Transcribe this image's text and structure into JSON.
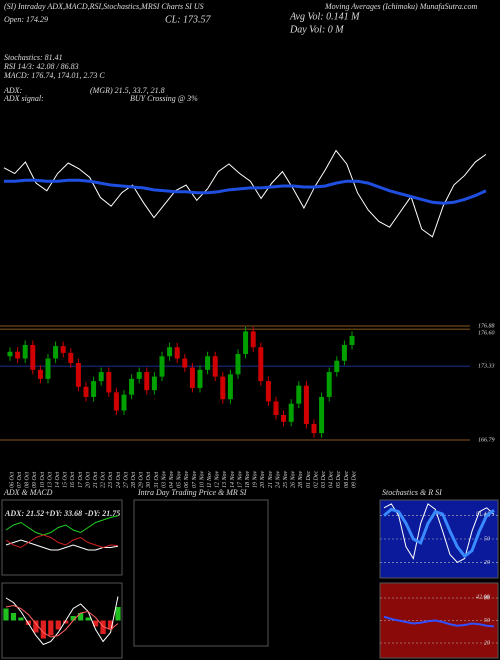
{
  "header": {
    "title": "(SI) Intraday ADX,MACD,RSI,Stochastics,MRSI Charts SI US",
    "site": "Moving Averages (Ichimoku) MunafaSutra.com",
    "open": "Open: 174.29",
    "close": "CL: 173.57",
    "avg_vol": "Avg Vol: 0.141 M",
    "day_vol": "Day Vol: 0 M",
    "stochastics": "Stochastics: 81.41",
    "rsi": "RSI 14/3: 42.08 / 86.83",
    "macd": "MACD: 176.74, 174.01, 2.73 C",
    "adx_label": "ADX:",
    "adx_value": "(MGR) 21.5, 33.7, 21.8",
    "adx_signal_label": "ADX  signal:",
    "adx_signal": "BUY Crossing @ 3%",
    "panel_left": "ADX  & MACD",
    "panel_middle": "Intra  Day Trading Price  & MR         SI",
    "panel_right": "Stochastics & R         SI"
  },
  "chart_data": [
    {
      "type": "line",
      "ylim": [
        165.5,
        177.5
      ],
      "series": [
        {
          "color": "#ffffff",
          "values": [
            174.6,
            174.0,
            175.2,
            173.0,
            172.2,
            174.0,
            175.1,
            174.5,
            173.6,
            171.5,
            170.6,
            172.0,
            172.8,
            171.0,
            169.4,
            170.8,
            172.2,
            172.8,
            171.2,
            172.4,
            174.2,
            175.0,
            174.0,
            173.2,
            171.4,
            173.0,
            174.2,
            172.4,
            170.4,
            172.6,
            174.4,
            176.4,
            175.0,
            172.0,
            170.2,
            169.0,
            168.4,
            170.0,
            171.6,
            168.2,
            167.4,
            170.6,
            172.8,
            173.8,
            175.2,
            176.0
          ]
        },
        {
          "color": "#1f4fe0",
          "width": 3,
          "values": [
            173.2,
            173.2,
            173.3,
            173.3,
            173.2,
            173.2,
            173.3,
            173.3,
            173.2,
            173.0,
            172.8,
            172.7,
            172.6,
            172.5,
            172.3,
            172.2,
            172.1,
            172.1,
            172.0,
            172.0,
            172.1,
            172.3,
            172.4,
            172.5,
            172.5,
            172.6,
            172.7,
            172.7,
            172.6,
            172.6,
            172.7,
            173.0,
            173.2,
            173.2,
            173.0,
            172.6,
            172.2,
            171.9,
            171.6,
            171.3,
            171.0,
            170.9,
            171.0,
            171.3,
            171.7,
            172.2
          ]
        }
      ]
    },
    {
      "type": "candlestick",
      "ylim": [
        165.46,
        177.41
      ],
      "up_color": "#00a000",
      "down_color": "#d00000",
      "dates": [
        "06 Oct",
        "07 Oct",
        "08 Oct",
        "09 Oct",
        "10 Oct",
        "13 Oct",
        "14 Oct",
        "15 Oct",
        "16 Oct",
        "17 Oct",
        "20 Oct",
        "21 Oct",
        "22 Oct",
        "23 Oct",
        "24 Oct",
        "27 Oct",
        "28 Oct",
        "29 Oct",
        "30 Oct",
        "31 Oct",
        "03 Nov",
        "04 Nov",
        "05 Nov",
        "06 Nov",
        "07 Nov",
        "10 Nov",
        "11 Nov",
        "12 Nov",
        "13 Nov",
        "14 Nov",
        "17 Nov",
        "18 Nov",
        "19 Nov",
        "20 Nov",
        "21 Nov",
        "24 Nov",
        "25 Nov",
        "26 Nov",
        "28 Nov",
        "01 Dec",
        "02 Dec",
        "03 Dec",
        "04 Dec",
        "05 Dec",
        "08 Dec",
        "09 Dec"
      ],
      "open": [
        174.2,
        174.6,
        174.0,
        175.2,
        173.0,
        172.2,
        174.0,
        175.1,
        174.5,
        173.6,
        171.5,
        170.6,
        172.0,
        172.8,
        171.0,
        169.4,
        170.8,
        172.2,
        172.8,
        171.2,
        172.4,
        174.2,
        175.0,
        174.0,
        173.2,
        171.4,
        173.0,
        174.2,
        172.4,
        170.4,
        172.6,
        174.4,
        176.4,
        175.0,
        172.0,
        170.2,
        169.0,
        168.4,
        170.0,
        171.6,
        168.2,
        167.4,
        170.6,
        172.8,
        173.8,
        175.2
      ],
      "high": [
        175.0,
        175.0,
        175.6,
        175.6,
        173.4,
        174.4,
        175.5,
        175.5,
        174.9,
        174.0,
        171.9,
        172.4,
        173.2,
        173.2,
        171.4,
        171.2,
        172.6,
        173.2,
        173.2,
        172.8,
        174.6,
        175.4,
        175.4,
        174.4,
        173.6,
        173.4,
        174.6,
        174.6,
        172.8,
        173.0,
        174.8,
        176.8,
        176.8,
        175.4,
        172.4,
        170.6,
        169.4,
        170.4,
        172.0,
        172.0,
        168.6,
        171.0,
        173.2,
        174.2,
        175.6,
        176.4
      ],
      "low": [
        173.8,
        173.6,
        173.6,
        172.6,
        171.8,
        171.8,
        173.6,
        174.1,
        173.2,
        171.1,
        170.2,
        170.2,
        171.6,
        170.6,
        169.0,
        169.0,
        170.4,
        171.8,
        170.8,
        170.8,
        172.0,
        173.8,
        173.6,
        172.8,
        171.0,
        171.0,
        172.6,
        172.0,
        170.0,
        170.0,
        172.2,
        174.0,
        174.6,
        171.6,
        169.8,
        168.6,
        168.0,
        168.0,
        169.6,
        167.8,
        167.0,
        167.0,
        170.2,
        172.4,
        173.4,
        174.8
      ],
      "close": [
        174.6,
        174.0,
        175.2,
        173.0,
        172.2,
        174.0,
        175.1,
        174.5,
        173.6,
        171.5,
        170.6,
        172.0,
        172.8,
        171.0,
        169.4,
        170.8,
        172.2,
        172.8,
        171.2,
        172.4,
        174.2,
        175.0,
        174.0,
        173.2,
        171.4,
        173.0,
        174.2,
        172.4,
        170.4,
        172.6,
        174.4,
        176.4,
        175.0,
        172.0,
        170.2,
        169.0,
        168.4,
        170.0,
        171.6,
        168.2,
        167.4,
        170.6,
        172.8,
        173.8,
        175.2,
        176.0
      ],
      "levels": [
        {
          "value": 176.88,
          "color": "#b8732a"
        },
        {
          "value": 176.6,
          "label": "176.60",
          "color": "#b8732a"
        },
        {
          "value": 173.33,
          "color": "#2040c0"
        },
        {
          "value": 166.79,
          "color": "#b8732a"
        }
      ]
    },
    {
      "type": "line",
      "ylim": [
        10,
        40
      ],
      "background": "#000000",
      "texts": [
        "ADX: 21.52",
        "+DY: 33.68",
        "-DY: 21.75"
      ],
      "series": [
        {
          "color": "#ffffff",
          "values": [
            22,
            23,
            24,
            23,
            22,
            21,
            20,
            20,
            21,
            22,
            21,
            20,
            20,
            21,
            21,
            21.52
          ]
        },
        {
          "color": "#20d020",
          "values": [
            28,
            30,
            31,
            29,
            27,
            26,
            27,
            29,
            30,
            28,
            27,
            29,
            31,
            32,
            33,
            33.68
          ]
        },
        {
          "color": "#d02020",
          "values": [
            24,
            22,
            21,
            23,
            25,
            26,
            25,
            23,
            22,
            24,
            25,
            23,
            22,
            21,
            22,
            21.75
          ]
        }
      ]
    },
    {
      "type": "bar",
      "ylim": [
        -2.5,
        2.5
      ],
      "background": "#000000",
      "up_color": "#20c020",
      "down_color": "#e02020",
      "values": [
        0.8,
        0.5,
        0.2,
        -0.3,
        -0.8,
        -1.2,
        -1.0,
        -0.6,
        -0.2,
        0.3,
        0.5,
        0.2,
        -0.4,
        -0.9,
        -0.6,
        0.9
      ],
      "series": [
        {
          "color": "#ffffff",
          "values": [
            1.5,
            1.2,
            0.6,
            -0.2,
            -1.0,
            -1.6,
            -1.4,
            -0.8,
            0,
            0.8,
            1.1,
            0.6,
            -0.6,
            -1.4,
            -0.8,
            1.6
          ]
        },
        {
          "color": "#ff6060",
          "values": [
            0.9,
            1.0,
            0.8,
            0.4,
            -0.2,
            -0.8,
            -1.1,
            -1.0,
            -0.6,
            0,
            0.5,
            0.6,
            0.2,
            -0.4,
            -0.6,
            -0.2
          ]
        }
      ]
    },
    {
      "type": "line",
      "ylim": [
        0,
        100
      ],
      "yticks": [
        20,
        50,
        80
      ],
      "background": "#0a1a9a",
      "texts": [
        "81.41"
      ],
      "series": [
        {
          "color": "#ffffff",
          "values": [
            90,
            95,
            80,
            40,
            25,
            70,
            95,
            88,
            60,
            30,
            20,
            25,
            60,
            85,
            90,
            81.41
          ]
        },
        {
          "color": "#3a8aff",
          "width": 3,
          "values": [
            80,
            88,
            85,
            70,
            50,
            45,
            70,
            85,
            82,
            60,
            40,
            28,
            35,
            60,
            80,
            86.83
          ]
        }
      ]
    },
    {
      "type": "line",
      "ylim": [
        0,
        100
      ],
      "yticks": [
        20,
        50,
        80
      ],
      "background": "#8a0a0a",
      "texts": [
        "42.08"
      ],
      "series": [
        {
          "color": "#3050ff",
          "width": 2,
          "values": [
            55,
            52,
            50,
            48,
            46,
            47,
            49,
            50,
            48,
            45,
            43,
            44,
            46,
            45,
            43,
            42.08
          ]
        }
      ]
    }
  ]
}
